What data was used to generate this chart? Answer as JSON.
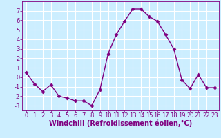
{
  "x": [
    0,
    1,
    2,
    3,
    4,
    5,
    6,
    7,
    8,
    9,
    10,
    11,
    12,
    13,
    14,
    15,
    16,
    17,
    18,
    19,
    20,
    21,
    22,
    23
  ],
  "y": [
    0.5,
    -0.7,
    -1.5,
    -0.8,
    -2.0,
    -2.2,
    -2.5,
    -2.5,
    -3.0,
    -1.3,
    2.5,
    4.5,
    5.9,
    7.2,
    7.2,
    6.4,
    5.9,
    4.5,
    3.0,
    -0.3,
    -1.2,
    0.3,
    -1.1,
    -1.1
  ],
  "line_color": "#800080",
  "marker": "D",
  "markersize": 2.5,
  "linewidth": 1.0,
  "xlabel": "Windchill (Refroidissement éolien,°C)",
  "bg_color": "#cceeff",
  "grid_color": "#ffffff",
  "tick_label_color": "#800080",
  "axis_label_color": "#800080",
  "xlim": [
    -0.5,
    23.5
  ],
  "ylim": [
    -3.5,
    8.0
  ],
  "yticks": [
    -3,
    -2,
    -1,
    0,
    1,
    2,
    3,
    4,
    5,
    6,
    7
  ],
  "xticks": [
    0,
    1,
    2,
    3,
    4,
    5,
    6,
    7,
    8,
    9,
    10,
    11,
    12,
    13,
    14,
    15,
    16,
    17,
    18,
    19,
    20,
    21,
    22,
    23
  ],
  "xlabel_fontsize": 7,
  "tick_fontsize": 6
}
